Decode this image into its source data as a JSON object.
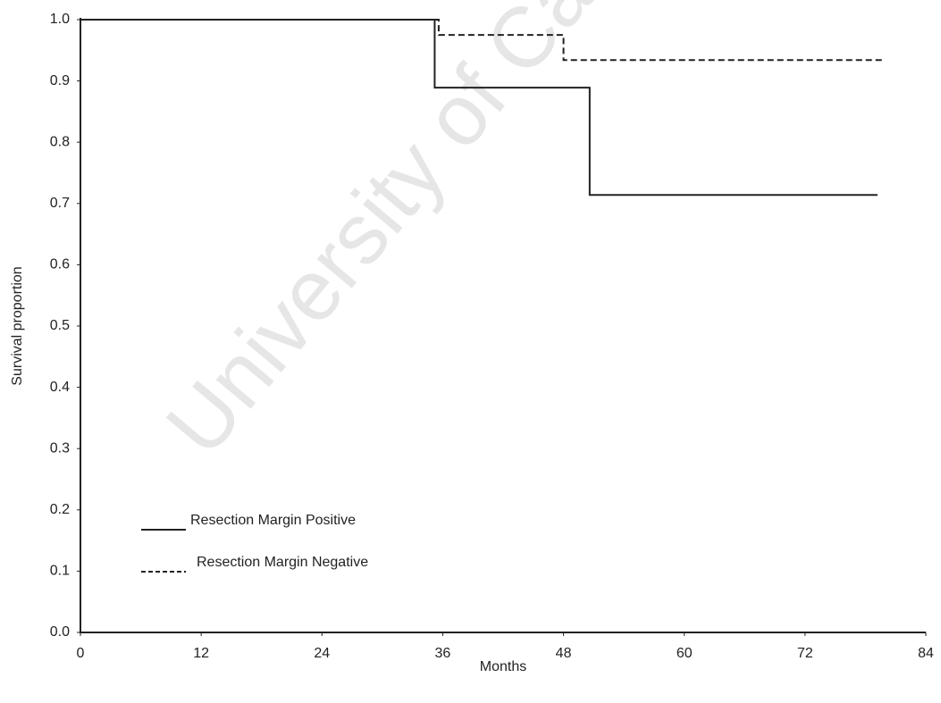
{
  "chart_data": {
    "type": "step",
    "watermark": "University of Ca",
    "x_label": "Months",
    "y_label": "Survival proportion",
    "xlim": [
      0,
      84
    ],
    "xticks": [
      0,
      12,
      24,
      36,
      48,
      60,
      72,
      84
    ],
    "ylim": [
      0,
      1
    ],
    "yticks": [
      {
        "value": 0,
        "label": "0.0"
      },
      0.1,
      0.2,
      0.3,
      0.4,
      0.5,
      0.6,
      0.7,
      0.8,
      0.9,
      {
        "value": 1,
        "label": "1.0"
      }
    ],
    "grid": false,
    "legend": "lower left",
    "series": [
      {
        "name": "Resection Margin Positive",
        "color": "#222222",
        "dash": "solid",
        "x": [
          0,
          35.2,
          35.2,
          50.6,
          50.6,
          79.2
        ],
        "values": [
          1,
          1,
          0.889,
          0.889,
          0.714,
          0.714
        ]
      },
      {
        "name": "Resection Margin Negative",
        "color": "#222222",
        "dash": "dashed",
        "x": [
          0,
          35.6,
          35.6,
          48.0,
          48.0,
          79.7
        ],
        "values": [
          1,
          1,
          0.975,
          0.975,
          0.934,
          0.934
        ]
      }
    ]
  }
}
